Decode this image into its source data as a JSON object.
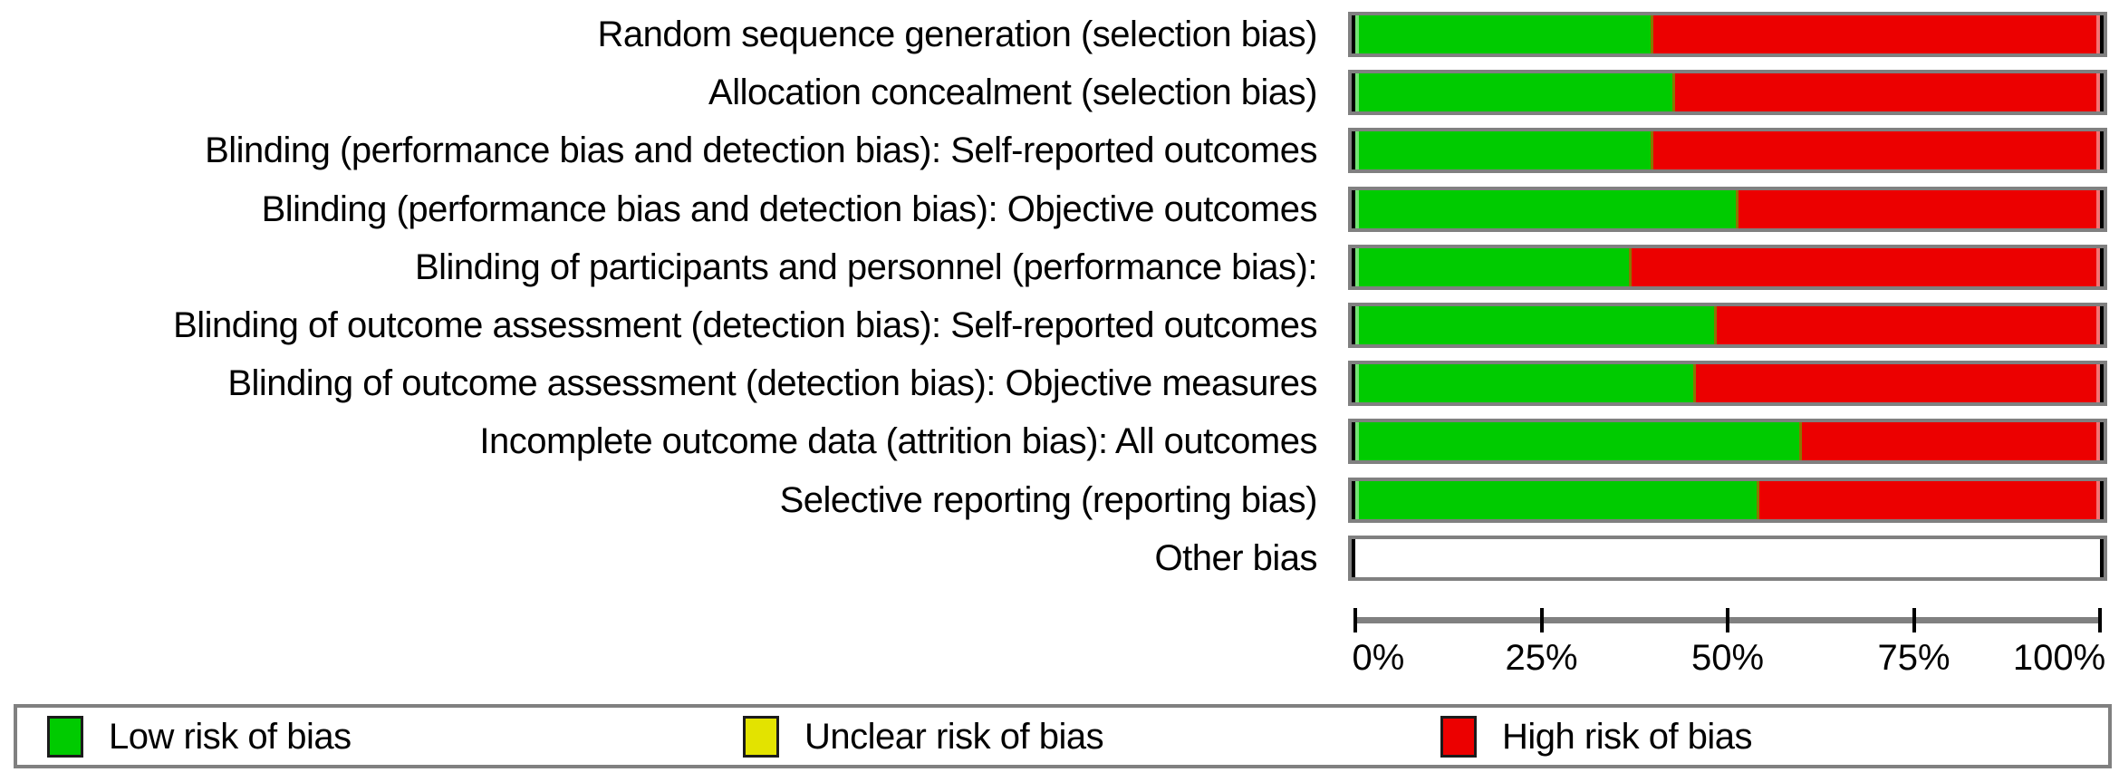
{
  "chart_data": {
    "type": "bar",
    "orientation": "horizontal",
    "stacked": true,
    "grid": false,
    "legend_position": "bottom",
    "categories": [
      "Random sequence generation (selection bias)",
      "Allocation concealment (selection bias)",
      "Blinding (performance bias and detection bias): Self-reported outcomes",
      "Blinding (performance bias and detection bias): Objective outcomes",
      "Blinding of participants and personnel (performance bias):",
      "Blinding of outcome assessment (detection bias): Self-reported outcomes",
      "Blinding of outcome assessment (detection bias): Objective measures",
      "Incomplete outcome data (attrition bias): All outcomes",
      "Selective reporting (reporting bias)",
      "Other bias"
    ],
    "series": [
      {
        "name": "Low risk of bias",
        "color": "#00cb00",
        "values": [
          40.0,
          42.9,
          40.0,
          51.4,
          37.1,
          48.6,
          45.7,
          60.0,
          54.3,
          0
        ]
      },
      {
        "name": "Unclear risk of bias",
        "color": "#e3e300",
        "values": [
          0,
          0,
          0,
          0,
          0,
          0,
          0,
          0,
          0,
          0
        ]
      },
      {
        "name": "High risk of bias",
        "color": "#ec0000",
        "values": [
          60.0,
          57.1,
          60.0,
          48.6,
          62.9,
          51.4,
          54.3,
          40.0,
          45.7,
          0
        ]
      }
    ],
    "xlim": [
      0,
      100
    ],
    "x_tick_values": [
      0,
      25,
      50,
      75,
      100
    ],
    "x_tick_labels": [
      "0%",
      "25%",
      "50%",
      "75%",
      "100%"
    ]
  },
  "legend": {
    "items": [
      {
        "label": "Low risk of bias",
        "color": "#00cb00"
      },
      {
        "label": "Unclear risk of bias",
        "color": "#e3e300"
      },
      {
        "label": "High risk of bias",
        "color": "#ec0000"
      }
    ]
  },
  "colors": {
    "frame_gray": "#808080",
    "segment_divider": "#8a7600"
  }
}
